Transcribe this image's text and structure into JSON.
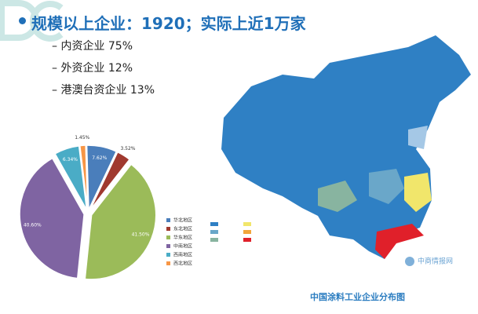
{
  "header": {
    "title": "规模以上企业：1920；实际上近1万家",
    "items": [
      "– 内资企业 75%",
      "– 外资企业 12%",
      "– 港澳台资企业 13%"
    ]
  },
  "chart_data": {
    "type": "pie",
    "categories": [
      "华北地区",
      "东北地区",
      "华东地区",
      "中南地区",
      "西南地区",
      "西北地区"
    ],
    "values": [
      7.62,
      3.52,
      41.5,
      40.6,
      6.34,
      1.45
    ],
    "value_labels": [
      "7.62%",
      "3.52%",
      "41.50%",
      "40.60%",
      "6.34%",
      "1.45%"
    ],
    "colors": [
      "#4a7ebb",
      "#a0392f",
      "#9bbb59",
      "#7f64a2",
      "#4aacc6",
      "#f79646"
    ]
  },
  "map": {
    "caption": "中国涂料工业企业分布图",
    "watermark": "中商情报网"
  }
}
